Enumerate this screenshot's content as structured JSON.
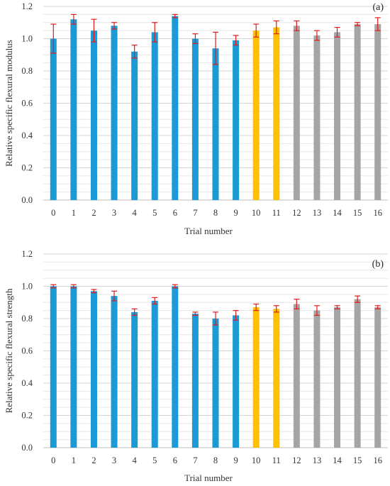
{
  "chart_data": [
    {
      "type": "bar",
      "panel_label": "(a)",
      "xlabel": "Trial number",
      "ylabel": "Relative specific flexural modulus",
      "ylim": [
        0,
        1.2
      ],
      "y_ticks": [
        "0.0",
        "0.2",
        "0.4",
        "0.6",
        "0.8",
        "1.0",
        "1.2"
      ],
      "grid": "horizontal, light gray, minor every 0.05",
      "categories": [
        "0",
        "1",
        "2",
        "3",
        "4",
        "5",
        "6",
        "7",
        "8",
        "9",
        "10",
        "11",
        "12",
        "13",
        "14",
        "15",
        "16"
      ],
      "values": [
        1.0,
        1.12,
        1.05,
        1.08,
        0.92,
        1.04,
        1.14,
        1.0,
        0.94,
        0.99,
        1.05,
        1.07,
        1.08,
        1.02,
        1.04,
        1.09,
        1.09
      ],
      "errors": [
        0.09,
        0.03,
        0.07,
        0.02,
        0.04,
        0.06,
        0.01,
        0.03,
        0.1,
        0.03,
        0.04,
        0.04,
        0.03,
        0.03,
        0.03,
        0.01,
        0.04
      ],
      "colors": [
        "#1c9ad6",
        "#1c9ad6",
        "#1c9ad6",
        "#1c9ad6",
        "#1c9ad6",
        "#1c9ad6",
        "#1c9ad6",
        "#1c9ad6",
        "#1c9ad6",
        "#1c9ad6",
        "#ffc000",
        "#ffc000",
        "#a5a5a5",
        "#a5a5a5",
        "#a5a5a5",
        "#a5a5a5",
        "#a5a5a5"
      ],
      "error_color": "#e31a1c"
    },
    {
      "type": "bar",
      "panel_label": "(b)",
      "xlabel": "Trial number",
      "ylabel": "Relative specific flexural strength",
      "ylim": [
        0,
        1.2
      ],
      "y_ticks": [
        "0.0",
        "0.2",
        "0.4",
        "0.6",
        "0.8",
        "1.0",
        "1.2"
      ],
      "grid": "horizontal, light gray, minor every 0.05",
      "categories": [
        "0",
        "1",
        "2",
        "3",
        "4",
        "5",
        "6",
        "7",
        "8",
        "9",
        "10",
        "11",
        "12",
        "13",
        "14",
        "15",
        "16"
      ],
      "values": [
        1.0,
        1.0,
        0.97,
        0.94,
        0.84,
        0.91,
        1.0,
        0.83,
        0.8,
        0.82,
        0.87,
        0.86,
        0.89,
        0.85,
        0.87,
        0.92,
        0.87
      ],
      "errors": [
        0.01,
        0.01,
        0.01,
        0.03,
        0.02,
        0.02,
        0.01,
        0.01,
        0.04,
        0.03,
        0.02,
        0.02,
        0.03,
        0.03,
        0.01,
        0.02,
        0.01
      ],
      "colors": [
        "#1c9ad6",
        "#1c9ad6",
        "#1c9ad6",
        "#1c9ad6",
        "#1c9ad6",
        "#1c9ad6",
        "#1c9ad6",
        "#1c9ad6",
        "#1c9ad6",
        "#1c9ad6",
        "#ffc000",
        "#ffc000",
        "#a5a5a5",
        "#a5a5a5",
        "#a5a5a5",
        "#a5a5a5",
        "#a5a5a5"
      ],
      "error_color": "#e31a1c"
    }
  ]
}
